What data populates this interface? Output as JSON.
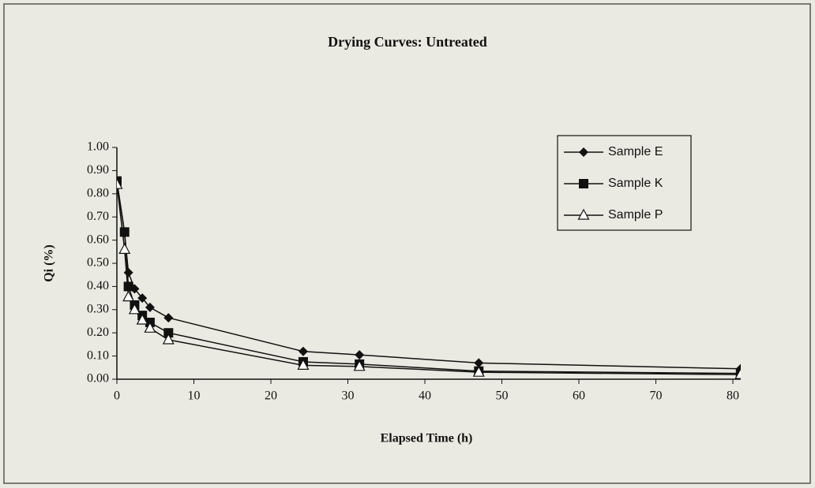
{
  "chart_data": {
    "type": "line",
    "title": "Drying Curves: Untreated",
    "x_label": "Elapsed Time (h)",
    "y_label": "Qi (%)",
    "xlim": [
      0,
      81
    ],
    "xticks": [
      0,
      10,
      20,
      30,
      40,
      50,
      60,
      70,
      80
    ],
    "ylim": [
      0,
      1
    ],
    "yticks": [
      {
        "value": 0,
        "label": "0.00"
      },
      {
        "value": 0.1,
        "label": "0.10"
      },
      {
        "value": 0.2,
        "label": "0.20"
      },
      {
        "value": 0.3,
        "label": "0.30"
      },
      {
        "value": 0.4,
        "label": "0.40"
      },
      {
        "value": 0.5,
        "label": "0.50"
      },
      {
        "value": 0.6,
        "label": "0.60"
      },
      {
        "value": 0.7,
        "label": "0.70"
      },
      {
        "value": 0.8,
        "label": "0.80"
      },
      {
        "value": 0.9,
        "label": "0.90"
      },
      {
        "value": 1,
        "label": "1.00"
      }
    ],
    "legend": "upper right",
    "series": [
      {
        "name": "Sample E",
        "color": "#111111",
        "marker": "diamond",
        "x": [
          0,
          1,
          1.5,
          2.3,
          3.3,
          4.3,
          6.7,
          24.2,
          31.5,
          47,
          81
        ],
        "values": [
          0.85,
          0.63,
          0.46,
          0.39,
          0.35,
          0.31,
          0.265,
          0.12,
          0.105,
          0.07,
          0.045
        ]
      },
      {
        "name": "Sample K",
        "color": "#111111",
        "marker": "square",
        "x": [
          0,
          1,
          1.5,
          2.3,
          3.3,
          4.3,
          6.7,
          24.2,
          31.5,
          47,
          81
        ],
        "values": [
          0.855,
          0.635,
          0.4,
          0.32,
          0.275,
          0.245,
          0.2,
          0.075,
          0.065,
          0.035,
          0.025
        ]
      },
      {
        "name": "Sample P",
        "color": "#111111",
        "marker": "triangle",
        "x": [
          0,
          1,
          1.5,
          2.3,
          3.3,
          4.3,
          6.7,
          24.2,
          31.5,
          47,
          81
        ],
        "values": [
          0.84,
          0.56,
          0.355,
          0.3,
          0.255,
          0.22,
          0.17,
          0.06,
          0.055,
          0.03,
          0.02
        ]
      }
    ]
  }
}
